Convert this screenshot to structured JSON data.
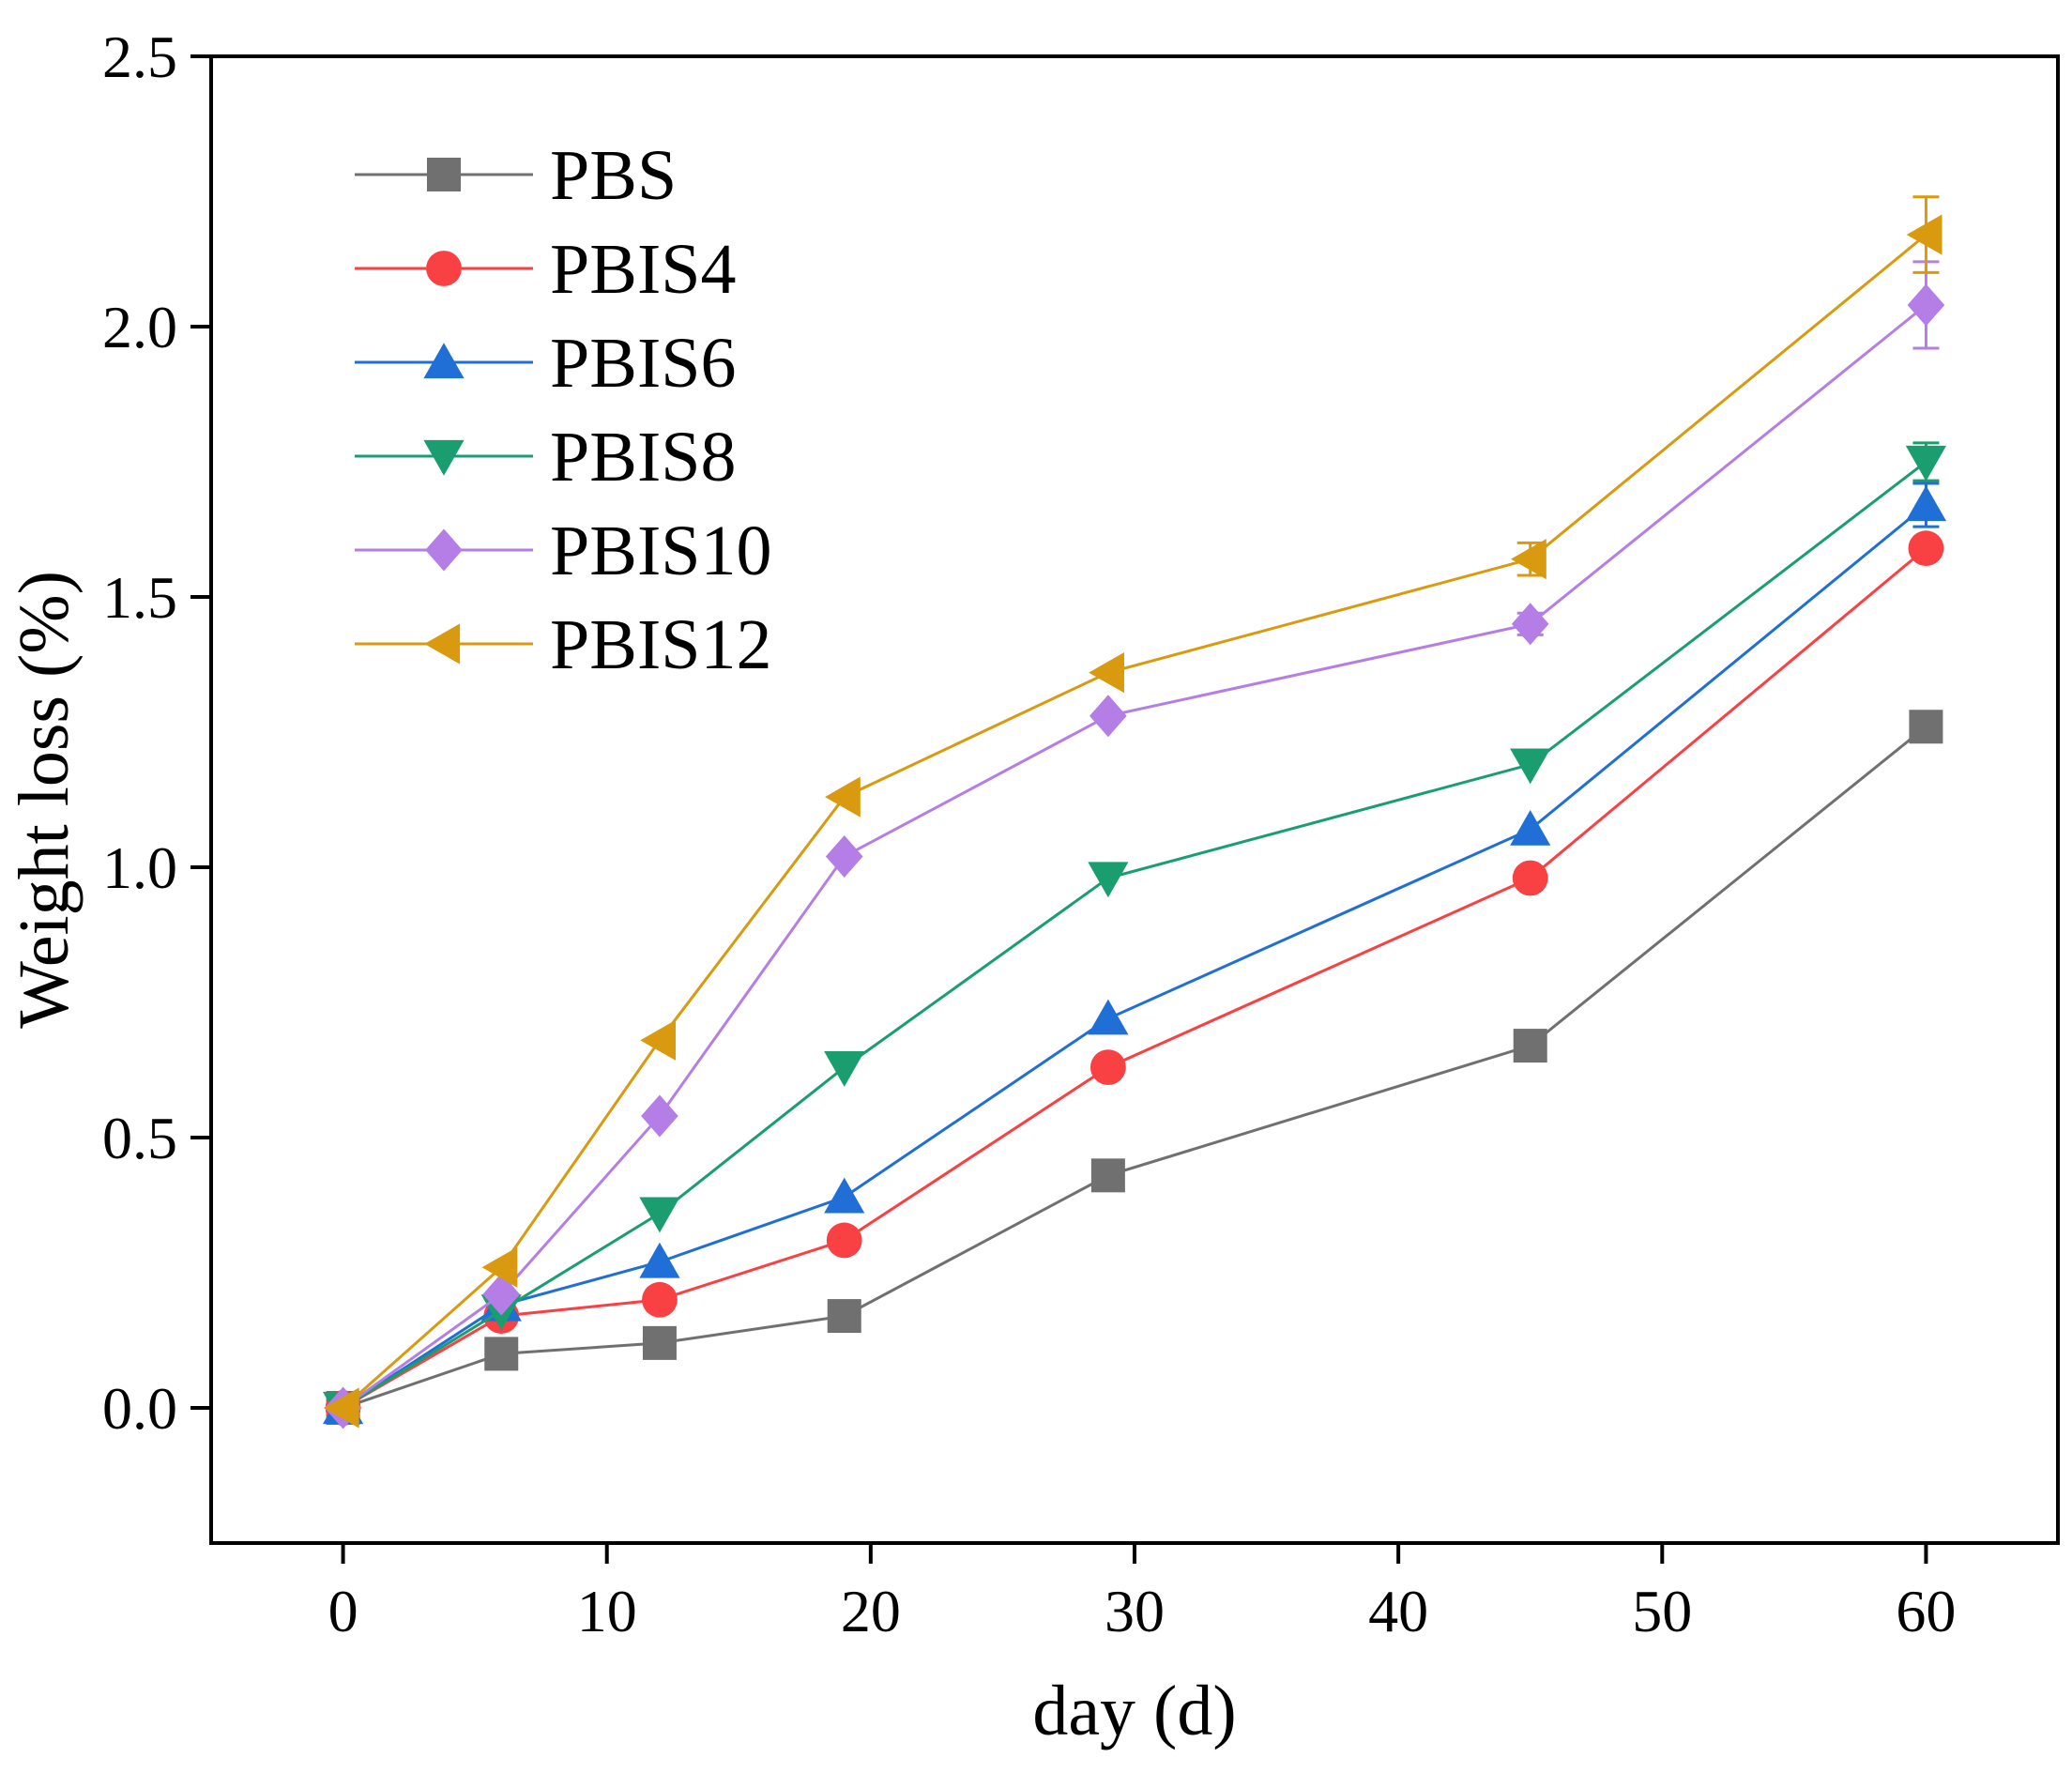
{
  "chart_data": {
    "type": "line",
    "title": "",
    "xlabel": "day (d)",
    "ylabel": "Weight loss (%)",
    "xlim": [
      -5,
      65
    ],
    "ylim": [
      -0.25,
      2.5
    ],
    "xticks": [
      0,
      10,
      20,
      30,
      40,
      50,
      60
    ],
    "yticks": [
      0.0,
      0.5,
      1.0,
      1.5,
      2.0,
      2.5
    ],
    "xtick_labels": [
      "0",
      "10",
      "20",
      "30",
      "40",
      "50",
      "60"
    ],
    "ytick_labels": [
      "0.0",
      "0.5",
      "1.0",
      "1.5",
      "2.0",
      "2.5"
    ],
    "grid": false,
    "legend_position": "top-left",
    "x": [
      0,
      6,
      12,
      19,
      29,
      45,
      60
    ],
    "series": [
      {
        "name": "PBS",
        "color": "#707070",
        "marker": "square",
        "values": [
          0.0,
          0.1,
          0.12,
          0.17,
          0.43,
          0.67,
          1.26
        ],
        "errors": [
          0,
          0,
          0,
          0,
          0,
          0,
          0
        ]
      },
      {
        "name": "PBIS4",
        "color": "#f94144",
        "marker": "circle",
        "values": [
          0.0,
          0.17,
          0.2,
          0.31,
          0.63,
          0.98,
          1.59
        ],
        "errors": [
          0,
          0,
          0,
          0,
          0,
          0,
          0
        ]
      },
      {
        "name": "PBIS6",
        "color": "#1f6fd6",
        "marker": "triangle-up",
        "values": [
          0.0,
          0.19,
          0.27,
          0.39,
          0.72,
          1.07,
          1.67
        ],
        "errors": [
          0,
          0,
          0,
          0,
          0,
          0,
          0.04
        ]
      },
      {
        "name": "PBIS8",
        "color": "#1a9e6f",
        "marker": "triangle-down",
        "values": [
          0.0,
          0.18,
          0.36,
          0.63,
          0.98,
          1.19,
          1.75
        ],
        "errors": [
          0,
          0,
          0,
          0,
          0,
          0,
          0.035
        ]
      },
      {
        "name": "PBIS10",
        "color": "#b57ee6",
        "marker": "diamond",
        "values": [
          0.0,
          0.21,
          0.54,
          1.02,
          1.28,
          1.45,
          2.04
        ],
        "errors": [
          0,
          0,
          0,
          0,
          0,
          0.02,
          0.08
        ]
      },
      {
        "name": "PBIS12",
        "color": "#d99a10",
        "marker": "triangle-left",
        "values": [
          0.0,
          0.26,
          0.68,
          1.13,
          1.36,
          1.57,
          2.17
        ],
        "errors": [
          0,
          0,
          0,
          0,
          0,
          0.03,
          0.07
        ]
      }
    ]
  }
}
